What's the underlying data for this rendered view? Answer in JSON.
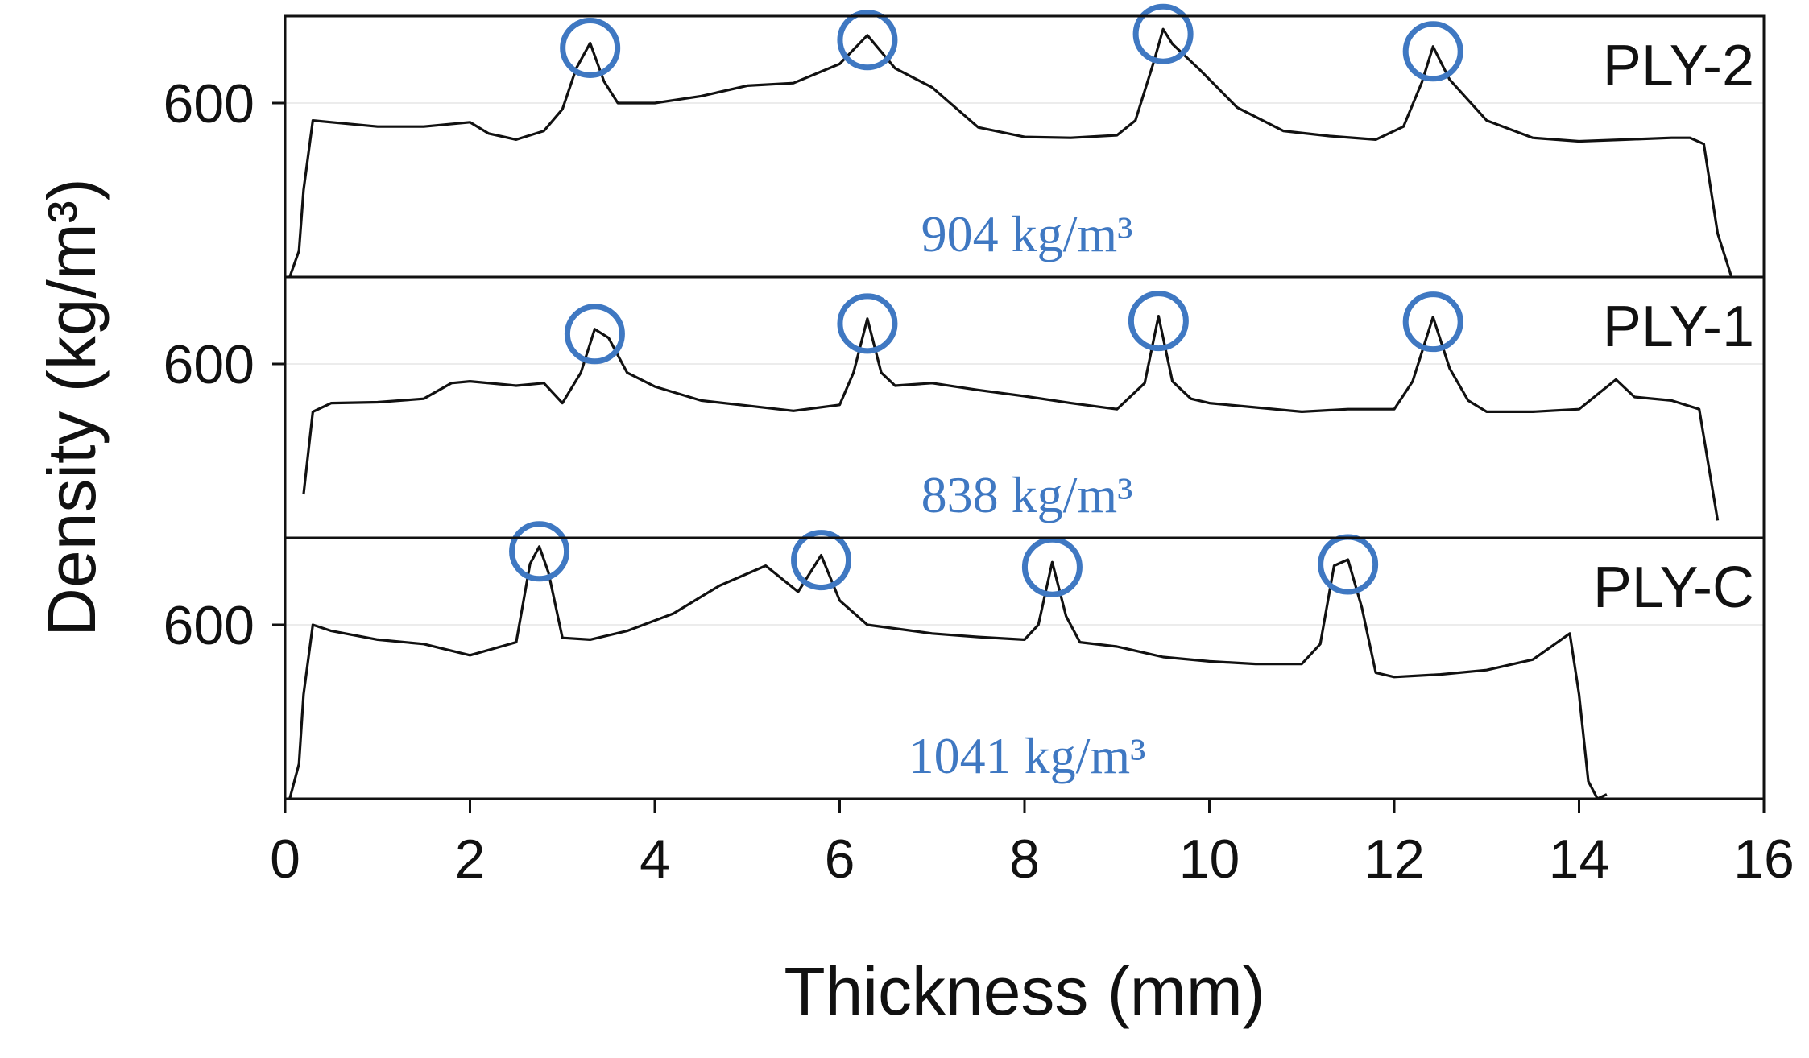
{
  "chart_data": {
    "type": "line",
    "layout": "stacked-panels",
    "xlabel": "Thickness (mm)",
    "ylabel": "Density (kg/m³)",
    "xlim": [
      0,
      16
    ],
    "x_ticks": [
      0,
      2,
      4,
      6,
      8,
      10,
      12,
      14,
      16
    ],
    "x_tick_labels": [
      "0",
      "2",
      "4",
      "6",
      "8",
      "10",
      "12",
      "14",
      "16"
    ],
    "panels": [
      {
        "name": "PLY-2",
        "mean_density_label": "904 kg/m³",
        "ylim": [
          400,
          700
        ],
        "y_tick": 600,
        "y_tick_label": "600",
        "x": [
          0.05,
          0.15,
          0.2,
          0.3,
          0.5,
          1.0,
          1.5,
          2.0,
          2.2,
          2.5,
          2.8,
          3.0,
          3.15,
          3.3,
          3.45,
          3.6,
          4.0,
          4.5,
          5.0,
          5.5,
          6.0,
          6.3,
          6.6,
          7.0,
          7.5,
          8.0,
          8.5,
          9.0,
          9.2,
          9.4,
          9.5,
          9.6,
          9.9,
          10.3,
          10.8,
          11.3,
          11.8,
          12.1,
          12.3,
          12.42,
          12.6,
          13.0,
          13.5,
          14.0,
          14.5,
          15.0,
          15.2,
          15.35,
          15.5,
          15.65
        ],
        "y": [
          400,
          430,
          500,
          580,
          578,
          573,
          573,
          578,
          565,
          558,
          568,
          593,
          640,
          669,
          625,
          600,
          600,
          608,
          620,
          623,
          645,
          678,
          640,
          618,
          572,
          561,
          560,
          563,
          580,
          648,
          685,
          668,
          638,
          595,
          568,
          562,
          558,
          573,
          624,
          665,
          627,
          580,
          560,
          556,
          558,
          560,
          560,
          553,
          450,
          400
        ],
        "peaks": [
          {
            "x": 3.3,
            "y": 669
          },
          {
            "x": 6.3,
            "y": 678
          },
          {
            "x": 9.5,
            "y": 685
          },
          {
            "x": 12.42,
            "y": 665
          }
        ]
      },
      {
        "name": "PLY-1",
        "mean_density_label": "838 kg/m³",
        "ylim": [
          400,
          700
        ],
        "y_tick": 600,
        "y_tick_label": "600",
        "x": [
          0.2,
          0.3,
          0.5,
          1.0,
          1.5,
          1.8,
          2.0,
          2.5,
          2.8,
          3.0,
          3.2,
          3.35,
          3.5,
          3.7,
          4.0,
          4.5,
          5.0,
          5.5,
          6.0,
          6.15,
          6.3,
          6.45,
          6.6,
          7.0,
          7.5,
          8.0,
          8.5,
          9.0,
          9.3,
          9.45,
          9.6,
          9.8,
          10.0,
          10.5,
          11.0,
          11.5,
          12.0,
          12.2,
          12.42,
          12.6,
          12.8,
          13.0,
          13.5,
          14.0,
          14.2,
          14.4,
          14.6,
          15.0,
          15.3,
          15.5
        ],
        "y": [
          450,
          545,
          555,
          556,
          560,
          578,
          580,
          575,
          578,
          555,
          590,
          640,
          630,
          590,
          574,
          558,
          552,
          546,
          553,
          590,
          652,
          590,
          575,
          578,
          570,
          563,
          555,
          548,
          578,
          655,
          580,
          560,
          555,
          550,
          545,
          548,
          548,
          580,
          654,
          595,
          558,
          545,
          545,
          548,
          565,
          582,
          562,
          558,
          548,
          420
        ],
        "peaks": [
          {
            "x": 3.35,
            "y": 640
          },
          {
            "x": 6.3,
            "y": 652
          },
          {
            "x": 9.45,
            "y": 655
          },
          {
            "x": 12.42,
            "y": 654
          }
        ]
      },
      {
        "name": "PLY-C",
        "mean_density_label": "1041 kg/m³",
        "ylim": [
          400,
          700
        ],
        "y_tick": 600,
        "y_tick_label": "600",
        "x": [
          0.05,
          0.15,
          0.2,
          0.3,
          0.5,
          1.0,
          1.5,
          2.0,
          2.5,
          2.65,
          2.75,
          2.85,
          3.0,
          3.3,
          3.7,
          4.2,
          4.7,
          5.2,
          5.55,
          5.8,
          6.0,
          6.3,
          7.0,
          7.5,
          8.0,
          8.15,
          8.3,
          8.45,
          8.6,
          9.0,
          9.5,
          10.0,
          10.5,
          11.0,
          11.2,
          11.35,
          11.5,
          11.65,
          11.8,
          12.0,
          12.5,
          13.0,
          13.5,
          13.9,
          14.0,
          14.1,
          14.2,
          14.3
        ],
        "y": [
          400,
          440,
          520,
          600,
          593,
          583,
          578,
          565,
          580,
          670,
          690,
          660,
          585,
          583,
          593,
          613,
          645,
          668,
          638,
          680,
          628,
          600,
          590,
          586,
          583,
          600,
          672,
          610,
          580,
          575,
          563,
          558,
          555,
          555,
          578,
          668,
          675,
          620,
          545,
          540,
          543,
          548,
          560,
          590,
          520,
          420,
          400,
          405
        ],
        "peaks": [
          {
            "x": 2.75,
            "y": 690
          },
          {
            "x": 5.8,
            "y": 680
          },
          {
            "x": 8.3,
            "y": 672
          },
          {
            "x": 11.5,
            "y": 675
          }
        ]
      }
    ]
  }
}
